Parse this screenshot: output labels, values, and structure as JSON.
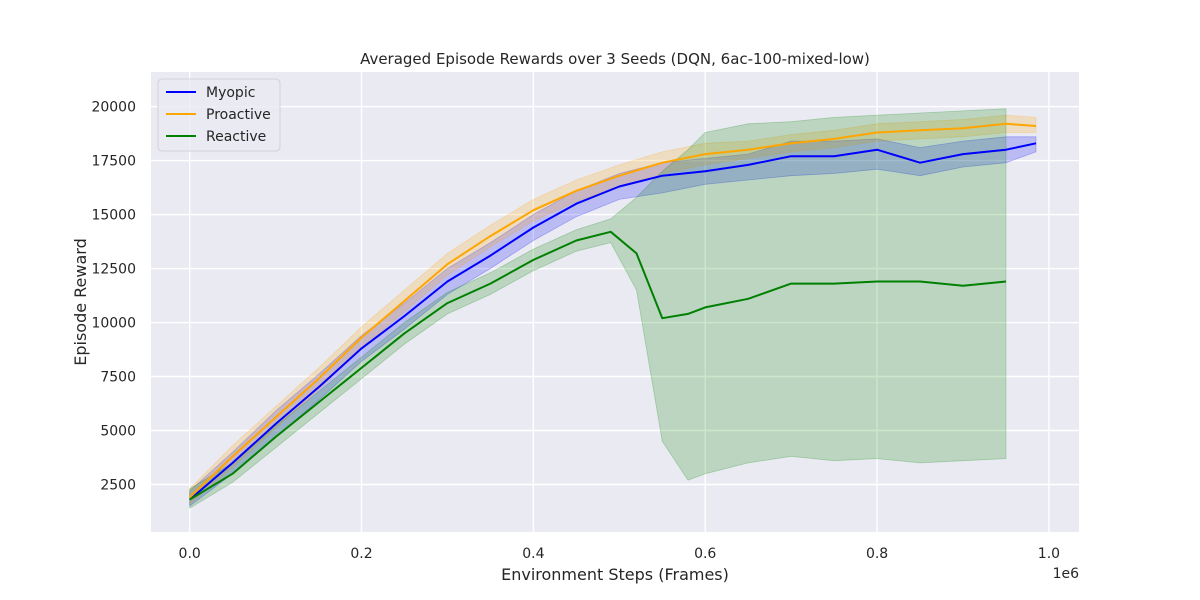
{
  "chart_data": {
    "type": "line",
    "title": "Averaged Episode Rewards over 3 Seeds (DQN, 6ac-100-mixed-low)",
    "xlabel": "Environment Steps (Frames)",
    "ylabel": "Episode Reward",
    "x_scale_label": "1e6",
    "xlim": [
      -0.045,
      1.035
    ],
    "ylim": [
      300,
      21600
    ],
    "xticks": [
      0.0,
      0.2,
      0.4,
      0.6,
      0.8,
      1.0
    ],
    "xtick_labels": [
      "0.0",
      "0.2",
      "0.4",
      "0.6",
      "0.8",
      "1.0"
    ],
    "yticks": [
      2500,
      5000,
      7500,
      10000,
      12500,
      15000,
      17500,
      20000
    ],
    "ytick_labels": [
      "2500",
      "5000",
      "7500",
      "10000",
      "12500",
      "15000",
      "17500",
      "20000"
    ],
    "grid": true,
    "legend_position": "top-left",
    "background": "#EAEAF2",
    "series": [
      {
        "name": "Myopic",
        "color": "#0000FF",
        "x": [
          0.0,
          0.05,
          0.1,
          0.15,
          0.2,
          0.25,
          0.3,
          0.35,
          0.4,
          0.45,
          0.5,
          0.55,
          0.6,
          0.65,
          0.7,
          0.75,
          0.8,
          0.85,
          0.9,
          0.95,
          0.985
        ],
        "y": [
          1800,
          3500,
          5300,
          7000,
          8800,
          10300,
          11900,
          13100,
          14400,
          15500,
          16300,
          16800,
          17000,
          17300,
          17700,
          17700,
          18000,
          17400,
          17800,
          18000,
          18300
        ],
        "lower": [
          1500,
          3000,
          4700,
          6400,
          8200,
          9700,
          11300,
          12500,
          13800,
          14900,
          15700,
          16000,
          16400,
          16600,
          16800,
          16900,
          17100,
          16800,
          17200,
          17400,
          17900
        ],
        "upper": [
          2200,
          4000,
          5900,
          7600,
          9400,
          10900,
          12500,
          13700,
          15000,
          16100,
          16900,
          17400,
          17600,
          17800,
          18400,
          18400,
          18500,
          18100,
          18400,
          18600,
          18600
        ]
      },
      {
        "name": "Proactive",
        "color": "#FFA500",
        "x": [
          0.0,
          0.05,
          0.1,
          0.15,
          0.2,
          0.25,
          0.3,
          0.35,
          0.4,
          0.45,
          0.5,
          0.55,
          0.6,
          0.65,
          0.7,
          0.75,
          0.8,
          0.85,
          0.9,
          0.95,
          0.985
        ],
        "y": [
          1900,
          3800,
          5600,
          7400,
          9300,
          11000,
          12700,
          14000,
          15200,
          16100,
          16800,
          17400,
          17800,
          18000,
          18300,
          18500,
          18800,
          18900,
          19000,
          19200,
          19100
        ],
        "lower": [
          1600,
          3300,
          5100,
          6900,
          8800,
          10500,
          12200,
          13500,
          14700,
          15600,
          16300,
          16900,
          17300,
          17600,
          17900,
          18100,
          18400,
          18500,
          18600,
          18800,
          18800
        ],
        "upper": [
          2300,
          4300,
          6100,
          7900,
          9800,
          11500,
          13200,
          14500,
          15700,
          16600,
          17300,
          17900,
          18300,
          18400,
          18700,
          18900,
          19200,
          19300,
          19400,
          19600,
          19500
        ]
      },
      {
        "name": "Reactive",
        "color": "#008000",
        "x": [
          0.0,
          0.05,
          0.1,
          0.15,
          0.2,
          0.25,
          0.3,
          0.35,
          0.4,
          0.45,
          0.49,
          0.52,
          0.55,
          0.58,
          0.6,
          0.65,
          0.7,
          0.75,
          0.8,
          0.85,
          0.9,
          0.95
        ],
        "y": [
          1800,
          3000,
          4700,
          6300,
          7900,
          9500,
          10900,
          11800,
          12900,
          13800,
          14200,
          13200,
          10200,
          10400,
          10700,
          11100,
          11800,
          11800,
          11900,
          11900,
          11700,
          11900
        ],
        "lower": [
          1400,
          2600,
          4200,
          5800,
          7400,
          9000,
          10400,
          11300,
          12400,
          13300,
          13700,
          11500,
          4500,
          2700,
          3000,
          3500,
          3800,
          3600,
          3700,
          3500,
          3600,
          3700
        ],
        "upper": [
          2300,
          3500,
          5200,
          6800,
          8400,
          10000,
          11400,
          12300,
          13400,
          14300,
          14800,
          15800,
          17000,
          18000,
          18800,
          19200,
          19300,
          19500,
          19600,
          19700,
          19800,
          19900
        ]
      }
    ]
  }
}
